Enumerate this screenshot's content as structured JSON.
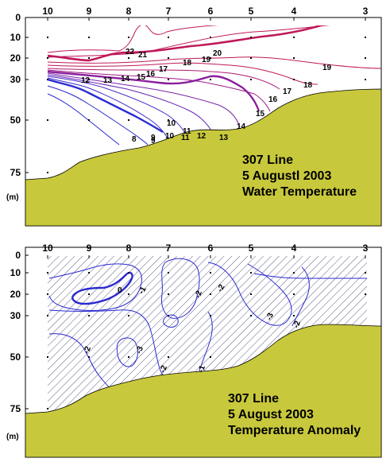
{
  "chart_data": [
    {
      "type": "contour",
      "stations": [
        "10",
        "9",
        "8",
        "7",
        "6",
        "5",
        "4",
        "3"
      ],
      "depth_ticks": [
        "0",
        "10",
        "20",
        "30",
        "50",
        "75"
      ],
      "depth_unit": "(m)",
      "title_lines": [
        "307 Line",
        "5 Augustl 2003",
        "Water Temperature"
      ],
      "contour_labels": [
        "22",
        "21",
        "20",
        "19",
        "18",
        "17",
        "16",
        "15",
        "14",
        "13",
        "12",
        "11",
        "10",
        "9",
        "8",
        "19",
        "18",
        "17",
        "16",
        "15",
        "14",
        "13",
        "12",
        "11",
        "10",
        "9"
      ],
      "colors": {
        "warm": "#c0185a",
        "mid": "#8a1f9c",
        "cold": "#2a2ad0",
        "bottom": "#c8c83c"
      }
    },
    {
      "type": "contour",
      "stations": [
        "10",
        "9",
        "8",
        "7",
        "6",
        "5",
        "4",
        "3"
      ],
      "depth_ticks": [
        "0",
        "10",
        "20",
        "30",
        "50",
        "75"
      ],
      "depth_unit": "(m)",
      "title_lines": [
        "307 Line",
        "5 August 2003",
        "Temperature Anomaly"
      ],
      "contour_labels": [
        "0",
        "-1",
        "-2",
        "-2",
        "-3",
        "-2",
        "-2",
        "-1",
        "-2",
        "-3"
      ],
      "colors": {
        "contour": "#2a2ad0",
        "hatch": "#333366",
        "bottom": "#c8c83c"
      }
    }
  ]
}
